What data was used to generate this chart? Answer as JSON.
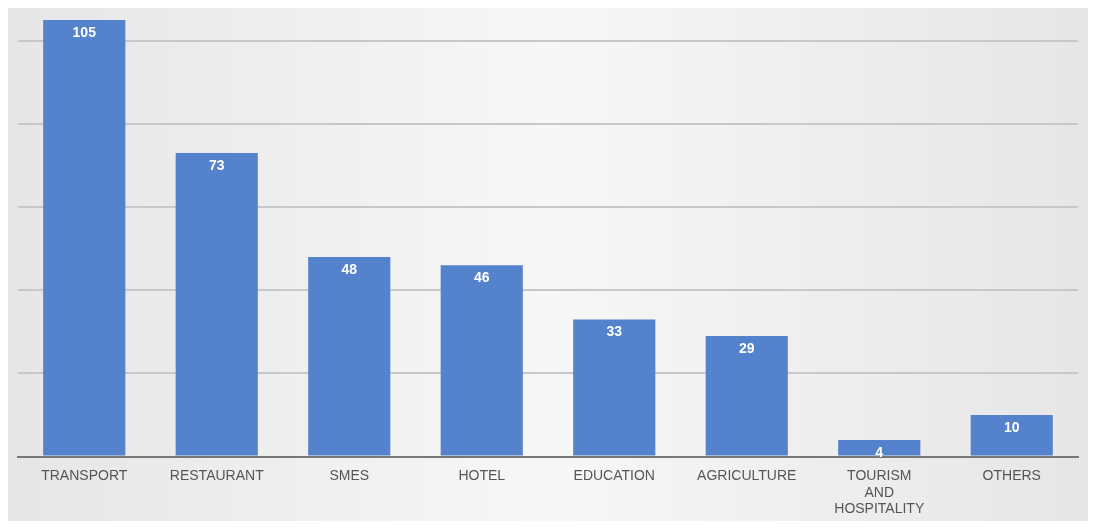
{
  "chart_data": {
    "type": "bar",
    "categories": [
      "TRANSPORT",
      "RESTAURANT",
      "SMES",
      "HOTEL",
      "EDUCATION",
      "AGRICULTURE",
      "TOURISM AND HOSPITALITY",
      "OTHERS"
    ],
    "values": [
      105,
      73,
      48,
      46,
      33,
      29,
      4,
      10
    ],
    "color": "#5582cc",
    "ylim": [
      0,
      105
    ],
    "yticks": [
      {
        "value": 0,
        "label": null
      },
      {
        "value": 20,
        "label": null
      },
      {
        "value": 40,
        "label": null
      },
      {
        "value": 60,
        "label": null
      },
      {
        "value": 80,
        "label": null
      },
      {
        "value": 100,
        "label": null
      }
    ],
    "grid": "y",
    "data_labels": true,
    "tick_labels": "x"
  }
}
